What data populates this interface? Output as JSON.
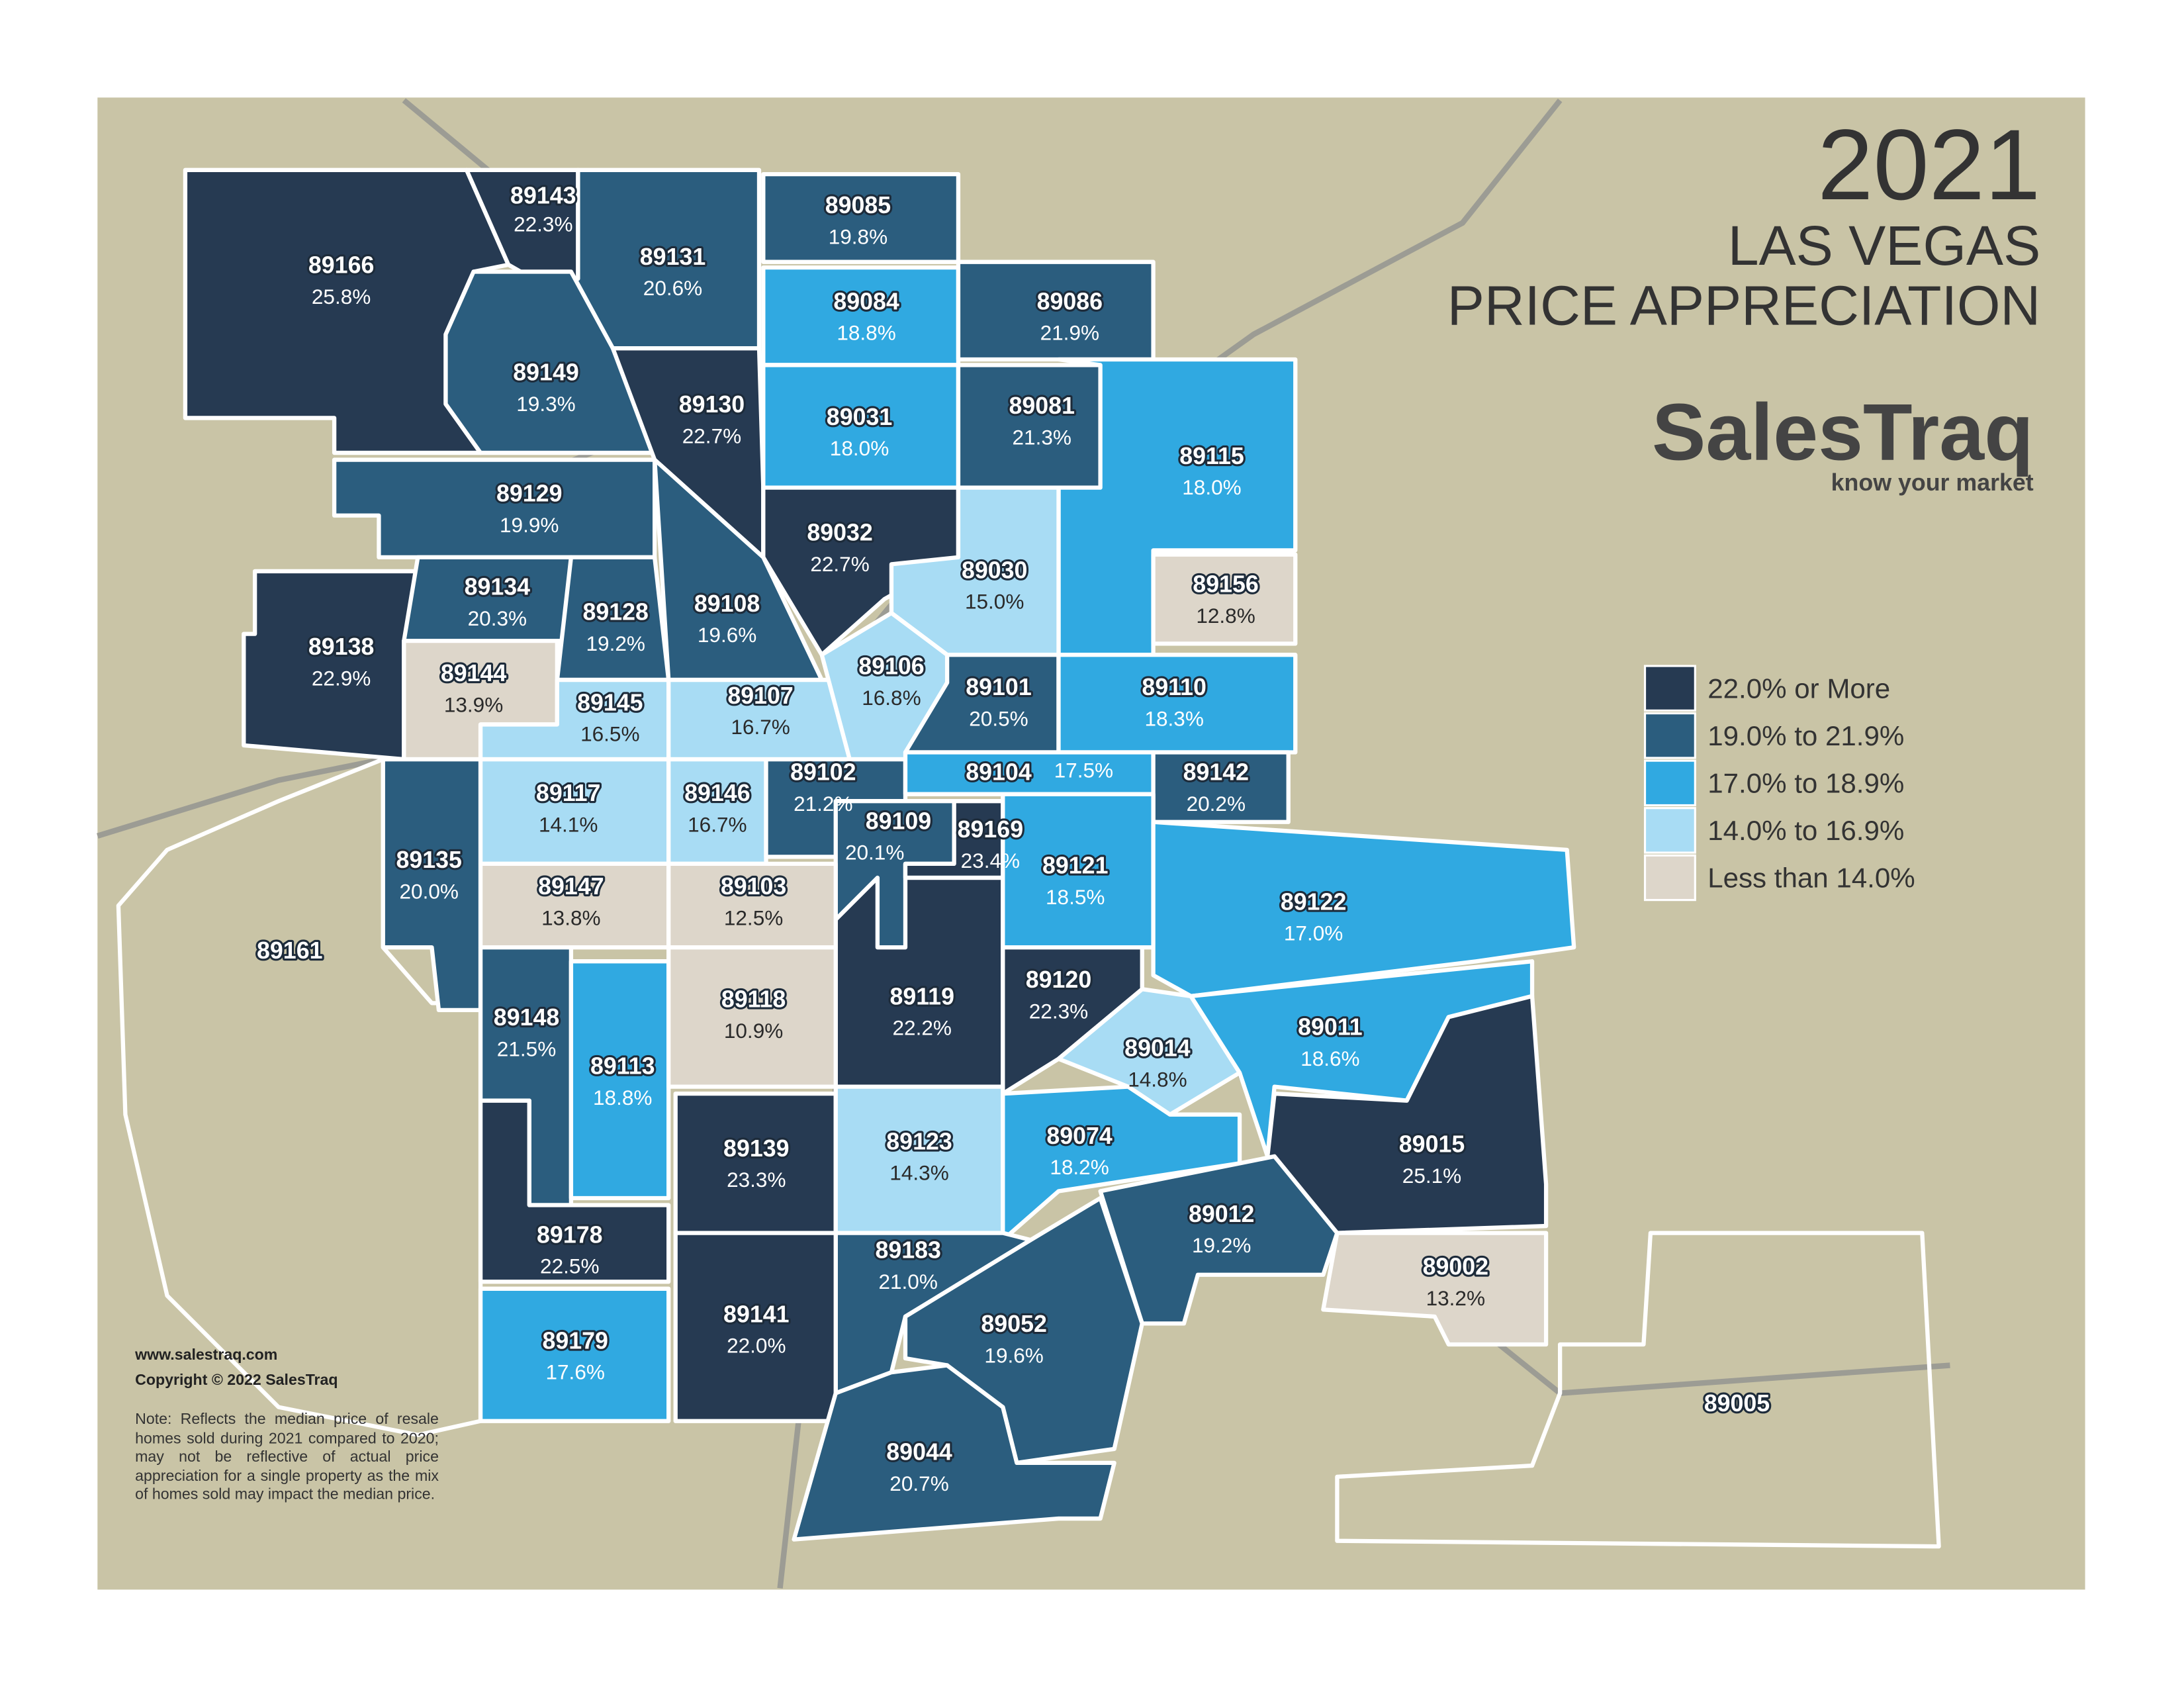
{
  "title": {
    "year": "2021",
    "line1": "LAS VEGAS",
    "line2": "PRICE APPRECIATION"
  },
  "logo": {
    "name": "SalesTraq",
    "tagline": "know your market"
  },
  "legend": [
    {
      "label": "22.0% or More",
      "color": "#263a52"
    },
    {
      "label": "19.0% to 21.9%",
      "color": "#2b5d7e"
    },
    {
      "label": "17.0% to 18.9%",
      "color": "#30a9e1"
    },
    {
      "label": "14.0% to 16.9%",
      "color": "#a8dcf4"
    },
    {
      "label": "Less than 14.0%",
      "color": "#ddd6ca"
    }
  ],
  "zip_codes": [
    {
      "zip": "89161"
    },
    {
      "zip": "89005"
    },
    {
      "zip": "89166",
      "change": "25.8%"
    },
    {
      "zip": "89143",
      "change": "22.3%"
    },
    {
      "zip": "89131",
      "change": "20.6%"
    },
    {
      "zip": "89085",
      "change": "19.8%"
    },
    {
      "zip": "89084",
      "change": "18.8%"
    },
    {
      "zip": "89086",
      "change": "21.9%"
    },
    {
      "zip": "89149",
      "change": "19.3%"
    },
    {
      "zip": "89130",
      "change": "22.7%"
    },
    {
      "zip": "89031",
      "change": "18.0%"
    },
    {
      "zip": "89081",
      "change": "21.3%"
    },
    {
      "zip": "89115",
      "change": "18.0%"
    },
    {
      "zip": "89129",
      "change": "19.9%"
    },
    {
      "zip": "89032",
      "change": "22.7%"
    },
    {
      "zip": "89030",
      "change": "15.0%"
    },
    {
      "zip": "89156",
      "change": "12.8%"
    },
    {
      "zip": "89138",
      "change": "22.9%"
    },
    {
      "zip": "89134",
      "change": "20.3%"
    },
    {
      "zip": "89128",
      "change": "19.2%"
    },
    {
      "zip": "89108",
      "change": "19.6%"
    },
    {
      "zip": "89144",
      "change": "13.9%"
    },
    {
      "zip": "89145",
      "change": "16.5%"
    },
    {
      "zip": "89107",
      "change": "16.7%"
    },
    {
      "zip": "89106",
      "change": "16.8%"
    },
    {
      "zip": "89101",
      "change": "20.5%"
    },
    {
      "zip": "89110",
      "change": "18.3%"
    },
    {
      "zip": "89135",
      "change": "20.0%"
    },
    {
      "zip": "89117",
      "change": "14.1%"
    },
    {
      "zip": "89146",
      "change": "16.7%"
    },
    {
      "zip": "89102",
      "change": "21.2%"
    },
    {
      "zip": "89104",
      "change": "17.5%"
    },
    {
      "zip": "89142",
      "change": "20.2%"
    },
    {
      "zip": "89119",
      "change": "22.2%"
    },
    {
      "zip": "89109",
      "change": "20.1%"
    },
    {
      "zip": "89169",
      "change": "23.4%"
    },
    {
      "zip": "89121",
      "change": "18.5%"
    },
    {
      "zip": "89147",
      "change": "13.8%"
    },
    {
      "zip": "89103",
      "change": "12.5%"
    },
    {
      "zip": "89122",
      "change": "17.0%"
    },
    {
      "zip": "89120",
      "change": "22.3%"
    },
    {
      "zip": "89148",
      "change": "21.5%"
    },
    {
      "zip": "89113",
      "change": "18.8%"
    },
    {
      "zip": "89118",
      "change": "10.9%"
    },
    {
      "zip": "89014",
      "change": "14.8%"
    },
    {
      "zip": "89011",
      "change": "18.6%"
    },
    {
      "zip": "89015",
      "change": "25.1%"
    },
    {
      "zip": "89139",
      "change": "23.3%"
    },
    {
      "zip": "89123",
      "change": "14.3%"
    },
    {
      "zip": "89074",
      "change": "18.2%"
    },
    {
      "zip": "89178",
      "change": "22.5%"
    },
    {
      "zip": "89012",
      "change": "19.2%"
    },
    {
      "zip": "89002",
      "change": "13.2%"
    },
    {
      "zip": "89183",
      "change": "21.0%"
    },
    {
      "zip": "89141",
      "change": "22.0%"
    },
    {
      "zip": "89179",
      "change": "17.6%"
    },
    {
      "zip": "89052",
      "change": "19.6%"
    },
    {
      "zip": "89044",
      "change": "20.7%"
    }
  ],
  "footer": {
    "website": "www.salestraq.com",
    "copyright": "Copyright © 2022 SalesTraq",
    "note": "Note: Reflects the median price of resale homes sold during 2021 compared to 2020; may not be reflective of actual price appreciation for a single property as the mix of homes sold may impact the median price."
  }
}
